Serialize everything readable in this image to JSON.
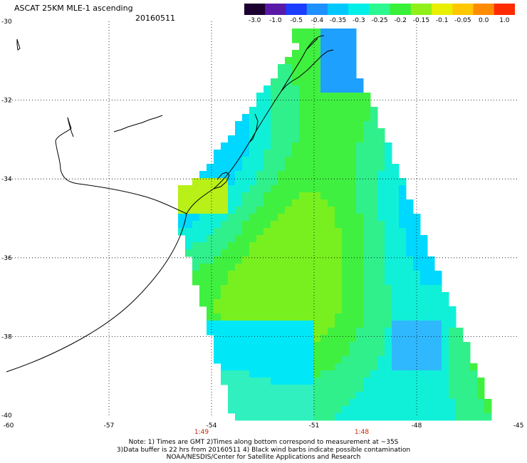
{
  "title": "ASCAT 25KM MLE-1 ascending",
  "date": "20160511",
  "colorbar": {
    "labels": [
      "-3.0",
      "-1.0",
      "-0.5",
      "-0.4",
      "-0.35",
      "-0.3",
      "-0.25",
      "-0.2",
      "-0.15",
      "-0.1",
      "-0.05",
      "0.0",
      "1.0"
    ],
    "colors": [
      "#1c0030",
      "#5a1aa8",
      "#1c3cff",
      "#1e90ff",
      "#00c8ff",
      "#00f0e8",
      "#2cf890",
      "#38f038",
      "#90f018",
      "#e8f000",
      "#ffc800",
      "#ff8c00",
      "#ff2a00"
    ]
  },
  "map": {
    "lat_labels": [
      "-30",
      "-32",
      "-34",
      "-36",
      "-38",
      "-40"
    ],
    "lon_labels": [
      "-60",
      "-57",
      "-54",
      "-51",
      "-48",
      "-45"
    ],
    "time_labels": [
      "1:49",
      "1:48"
    ],
    "lat_range": [
      -40,
      -30
    ],
    "lon_range": [
      -60,
      -45
    ],
    "grid": true
  },
  "notes": [
    "Note: 1) Times are GMT 2)Times along bottom correspond to measurement at ~35S",
    "3)Data buffer is 22 hrs from 20160511 4) Black wind barbs indicate possible contamination",
    "NOAA/NESDIS/Center for Satellite Applications and Research"
  ]
}
